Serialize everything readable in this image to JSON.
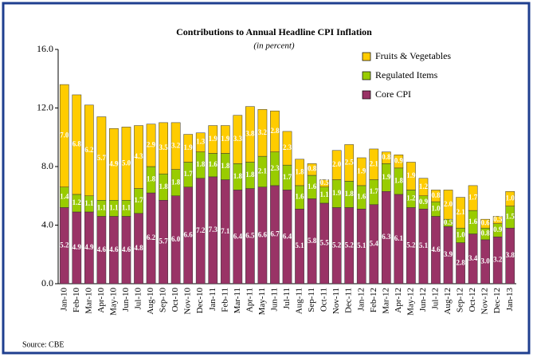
{
  "chart_data": {
    "type": "stacked_bar",
    "title": "Contributions to Annual Headline CPI Inflation",
    "subtitle": "(in percent)",
    "source": "Source: CBE",
    "categories": [
      "Jan-10",
      "Feb-10",
      "Mar-10",
      "Apr-10",
      "May-10",
      "Jun-10",
      "Jul-10",
      "Aug-10",
      "Sep-10",
      "Oct-10",
      "Nov-10",
      "Dec-10",
      "Jan-11",
      "Feb-11",
      "Mar-11",
      "Apr-11",
      "May-11",
      "Jun-11",
      "Jul-11",
      "Aug-11",
      "Sep-11",
      "Oct-11",
      "Nov-11",
      "Dec-11",
      "Jan-12",
      "Feb-12",
      "Mar-12",
      "Apr-12",
      "May-12",
      "Jun-12",
      "Jul-12",
      "Aug-12",
      "Sep-12",
      "Oct-12",
      "Nov-12",
      "Dec-12",
      "Jan-13"
    ],
    "ylim": [
      0,
      16
    ],
    "yticks": [
      {
        "value": 0,
        "label": "0.0"
      },
      {
        "value": 4,
        "label": "4.0"
      },
      {
        "value": 8,
        "label": "8.0"
      },
      {
        "value": 12,
        "label": "12.0"
      },
      {
        "value": 16,
        "label": "16.0"
      }
    ],
    "legend": "top-right",
    "series": [
      {
        "name": "Core CPI",
        "color": "#993366",
        "values": [
          5.2,
          4.9,
          4.9,
          4.6,
          4.6,
          4.6,
          4.8,
          6.2,
          5.7,
          6.0,
          6.6,
          7.2,
          7.3,
          7.1,
          6.4,
          6.5,
          6.6,
          6.7,
          6.4,
          5.1,
          5.8,
          5.5,
          5.2,
          5.2,
          5.1,
          5.4,
          6.3,
          6.1,
          5.2,
          5.1,
          4.6,
          3.9,
          2.8,
          3.4,
          3.0,
          3.2,
          3.8
        ],
        "value_labels": [
          "5.2",
          "4.9",
          "4.9",
          "4.6",
          "4.6",
          "4.6",
          "4.8",
          "6.2",
          "5.7",
          "6.0",
          "6.6",
          "7.2",
          "7.3",
          "7.1",
          "6.4",
          "6.5",
          "6.6",
          "6.7",
          "6.4",
          "5.1",
          "5.8",
          "5.5",
          "5.2",
          "5.2",
          "5.1",
          "5.4",
          "6.3",
          "6.1",
          "5.2",
          "5.1",
          "4.6",
          "3.9",
          "2.8",
          "3.4",
          "3.0",
          "3.2",
          "3.8"
        ]
      },
      {
        "name": "Regulated Items",
        "color": "#99cc00",
        "values": [
          1.4,
          1.2,
          1.1,
          1.1,
          1.1,
          1.1,
          1.7,
          1.8,
          1.8,
          1.8,
          1.7,
          1.8,
          1.6,
          1.8,
          1.8,
          1.8,
          2.1,
          2.3,
          1.7,
          1.6,
          1.6,
          1.1,
          1.9,
          1.8,
          1.6,
          1.7,
          1.9,
          1.8,
          1.2,
          0.9,
          1.0,
          0.5,
          1.0,
          1.6,
          0.8,
          0.9,
          1.5
        ],
        "value_labels": [
          "1.4",
          "1.2",
          "1.1",
          "1.1",
          "1.1",
          "1.1",
          "1.7",
          "1.8",
          "1.8",
          "1.8",
          "1.7",
          "1.8",
          "1.6",
          "1.8",
          "1.8",
          "1.8",
          "2.1",
          "2.3",
          "1.7",
          "1.6",
          "1.6",
          "1.1",
          "1.9",
          "1.8",
          "1.6",
          "1.7",
          "1.9",
          "1.8",
          "1.2",
          "0.9",
          "1.0",
          "0.5",
          "1.0",
          "1.6",
          "0.8",
          "0.9",
          "1.5"
        ]
      },
      {
        "name": "Fruits & Vegetables",
        "color": "#ffcc00",
        "values": [
          7.0,
          6.8,
          6.2,
          5.7,
          4.9,
          5.0,
          4.3,
          2.9,
          3.5,
          3.2,
          1.9,
          1.3,
          1.9,
          1.9,
          3.3,
          3.8,
          3.2,
          2.8,
          2.3,
          1.8,
          0.8,
          0.5,
          2.0,
          2.5,
          1.9,
          2.1,
          0.8,
          0.9,
          1.9,
          1.2,
          0.8,
          2.0,
          2.1,
          1.7,
          0.6,
          0.5,
          1.0
        ],
        "value_labels": [
          "7.0",
          "6.8",
          "6.2",
          "5.7",
          "4.9",
          "5.0",
          "4.3",
          "2.9",
          "3.5",
          "3.2",
          "1.9",
          "1.3",
          "1.9",
          "1.9",
          "3.3",
          "3.8",
          "3.2",
          "2.8",
          "2.3",
          "1.8",
          "0.8",
          "0.5",
          "2.0",
          "2.5",
          "1.9",
          "2.1",
          "0.8",
          "0.9",
          "1.9",
          "1.2",
          "0.8",
          "2.0",
          "2.1",
          "1.7",
          "0.6",
          "0.5",
          "1.0"
        ]
      }
    ]
  }
}
